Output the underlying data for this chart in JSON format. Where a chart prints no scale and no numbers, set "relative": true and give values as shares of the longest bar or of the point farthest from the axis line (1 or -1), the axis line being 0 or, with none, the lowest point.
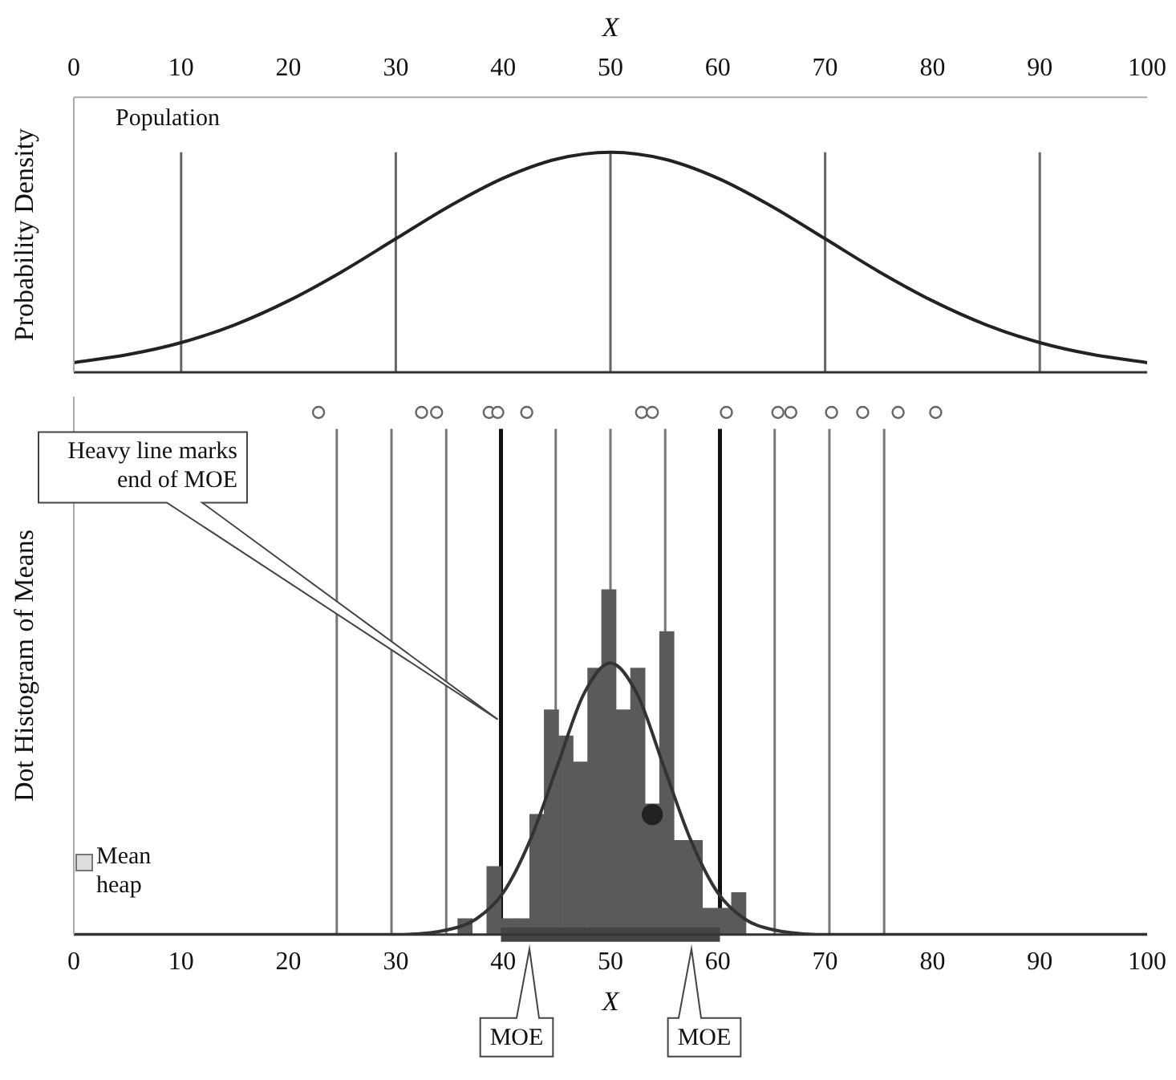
{
  "chart_data": [
    {
      "type": "line",
      "xlabel": "X",
      "ylabel": "Probability Density",
      "annotations": [
        "Population"
      ],
      "x": [
        0,
        5,
        10,
        15,
        20,
        25,
        30,
        35,
        40,
        45,
        50,
        55,
        60,
        65,
        70,
        75,
        80,
        85,
        90,
        95,
        100
      ],
      "values": [
        0.044,
        0.08,
        0.135,
        0.216,
        0.325,
        0.458,
        0.607,
        0.755,
        0.882,
        0.969,
        1,
        0.969,
        0.882,
        0.755,
        0.607,
        0.458,
        0.325,
        0.216,
        0.135,
        0.08,
        0.044
      ],
      "color": "#222222",
      "relative": true,
      "tick_labels": "x",
      "xlim": [
        0,
        100
      ],
      "xticks": [
        0,
        10,
        20,
        30,
        40,
        50,
        60,
        70,
        80,
        90,
        100
      ],
      "ref_lines": [
        {
          "axis": "x",
          "value": 10,
          "color": "#666666"
        },
        {
          "axis": "x",
          "value": 30,
          "color": "#666666"
        },
        {
          "axis": "x",
          "value": 50,
          "color": "#666666"
        },
        {
          "axis": "x",
          "value": 70,
          "color": "#666666"
        },
        {
          "axis": "x",
          "value": 90,
          "color": "#666666"
        }
      ]
    },
    {
      "type": "histogram",
      "xlabel": "X",
      "ylabel": "Dot Histogram of Means",
      "bins": [
        35.8,
        37.1,
        38.5,
        39.8,
        41.2,
        42.5,
        43.8,
        45.2,
        46.5,
        47.9,
        49.2,
        50.5,
        51.9,
        53.2,
        54.6,
        55.9,
        57.2,
        58.6,
        59.9,
        61.3,
        62.6
      ],
      "values": [
        0.03,
        0,
        0.13,
        0.03,
        0.03,
        0.23,
        0.43,
        0.38,
        0.33,
        0.51,
        0.66,
        0.43,
        0.51,
        0.25,
        0.58,
        0.18,
        0.18,
        0.05,
        0.05,
        0.08
      ],
      "color": "#5a5a5a",
      "relative": true,
      "tick_labels": "x",
      "xlim": [
        0,
        100
      ],
      "xticks": [
        0,
        10,
        20,
        30,
        40,
        50,
        60,
        70,
        80,
        90,
        100
      ],
      "series": [
        {
          "type": "line",
          "x": [
            0,
            30,
            35,
            37.5,
            40,
            42.5,
            45,
            47.5,
            50,
            52.5,
            55,
            57.5,
            60,
            62.5,
            65,
            70,
            100
          ],
          "values": [
            0,
            0,
            0.01,
            0.03,
            0.08,
            0.18,
            0.32,
            0.46,
            0.52,
            0.46,
            0.32,
            0.18,
            0.08,
            0.03,
            0.01,
            0,
            0
          ],
          "color": "#333333"
        },
        {
          "type": "scatter",
          "x": [
            22.8,
            32.4,
            33.8,
            38.7,
            39.5,
            42.2,
            52.9,
            53.9,
            60.8,
            65.6,
            66.8,
            70.6,
            73.5,
            76.8,
            80.3
          ],
          "values": [
            1,
            1,
            1,
            1,
            1,
            1,
            1,
            1,
            1,
            1,
            1,
            1,
            1,
            1,
            1
          ],
          "color": "#666666",
          "marker": "circle"
        },
        {
          "type": "scatter",
          "x": [
            53.9
          ],
          "values": [
            0.23
          ],
          "color": "#222222",
          "marker": "circle"
        },
        {
          "type": "line",
          "x": [
            39.8,
            60.2
          ],
          "values": [
            0,
            0
          ],
          "color": "#444444"
        }
      ],
      "ref_lines": [
        {
          "axis": "x",
          "value": 24.5,
          "color": "#777777"
        },
        {
          "axis": "x",
          "value": 29.6,
          "color": "#777777"
        },
        {
          "axis": "x",
          "value": 34.7,
          "color": "#777777"
        },
        {
          "axis": "x",
          "value": 39.8,
          "color": "#111111"
        },
        {
          "axis": "x",
          "value": 44.9,
          "color": "#777777"
        },
        {
          "axis": "x",
          "value": 50,
          "color": "#777777"
        },
        {
          "axis": "x",
          "value": 55.1,
          "color": "#777777"
        },
        {
          "axis": "x",
          "value": 60.2,
          "color": "#111111"
        },
        {
          "axis": "x",
          "value": 65.3,
          "color": "#777777"
        },
        {
          "axis": "x",
          "value": 70.4,
          "color": "#777777"
        },
        {
          "axis": "x",
          "value": 75.5,
          "color": "#777777"
        }
      ],
      "annotations": [
        "Heavy line marks end of MOE",
        "MOE",
        "MOE",
        "Mean heap"
      ]
    }
  ]
}
